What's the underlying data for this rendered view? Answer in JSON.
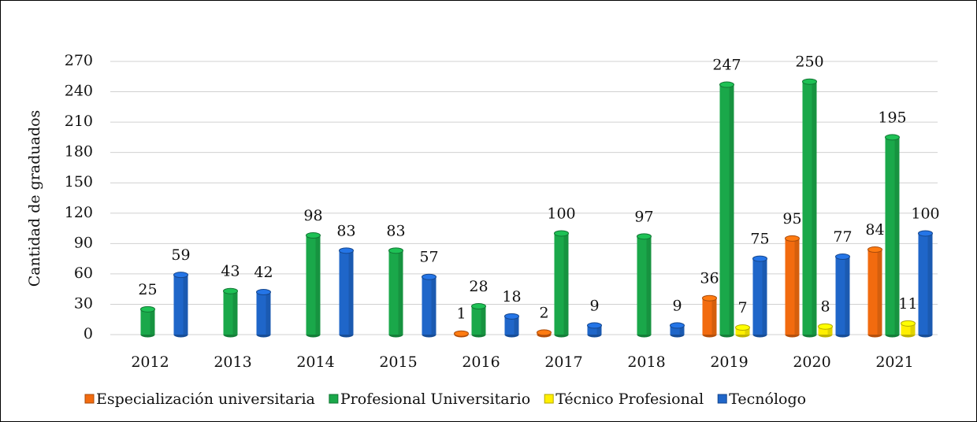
{
  "chart_data": {
    "type": "bar",
    "y_label": "Cantidad de graduados",
    "categories": [
      "2012",
      "2013",
      "2014",
      "2015",
      "2016",
      "2017",
      "2018",
      "2019",
      "2020",
      "2021"
    ],
    "series": [
      {
        "name": "Especialización universitaria",
        "color": "#f26b0f",
        "values": [
          null,
          null,
          null,
          null,
          1,
          2,
          null,
          36,
          95,
          84
        ]
      },
      {
        "name": "Profesional Universitario",
        "color": "#1aa84a",
        "values": [
          25,
          43,
          98,
          83,
          28,
          100,
          97,
          247,
          250,
          195
        ]
      },
      {
        "name": "Técnico Profesional",
        "color": "#ffef00",
        "values": [
          null,
          null,
          null,
          null,
          null,
          null,
          null,
          7,
          8,
          11
        ]
      },
      {
        "name": "Tecnólogo",
        "color": "#1f66c9",
        "values": [
          59,
          42,
          83,
          57,
          18,
          9,
          9,
          75,
          77,
          100
        ]
      }
    ],
    "ylim": [
      0,
      270
    ],
    "yticks": [
      0,
      30,
      60,
      90,
      120,
      150,
      180,
      210,
      240,
      270
    ],
    "grid": true,
    "legend": "bottom"
  }
}
